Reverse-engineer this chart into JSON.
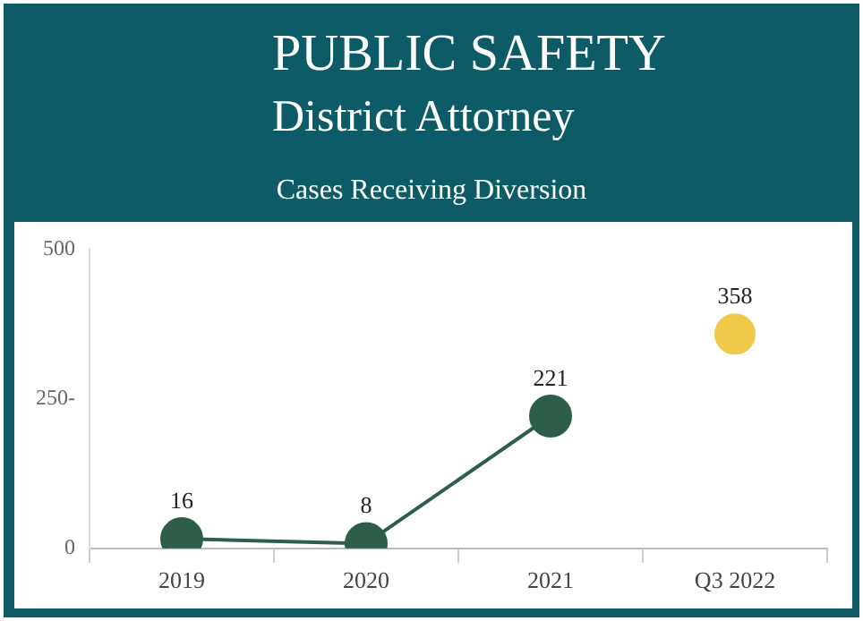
{
  "chart_data": {
    "type": "line",
    "title": "PUBLIC SAFETY",
    "subtitle": "District Attorney",
    "ylabel": null,
    "annotations": [
      "Cases Receiving Diversion"
    ],
    "categories": [
      "2019",
      "2020",
      "2021",
      "Q3 2022"
    ],
    "series": [
      {
        "color": "#2d5e4a",
        "values": [
          16,
          8,
          221,
          null
        ]
      },
      {
        "type": "scatter",
        "color": "#f0c94a",
        "values": [
          null,
          null,
          null,
          358
        ]
      }
    ],
    "ylim": [
      0,
      500
    ],
    "yticks": [
      0,
      {
        "value": 250,
        "label": "250-"
      },
      500
    ],
    "grid": false,
    "legend": false,
    "marker": "circle",
    "data_labels": true
  }
}
